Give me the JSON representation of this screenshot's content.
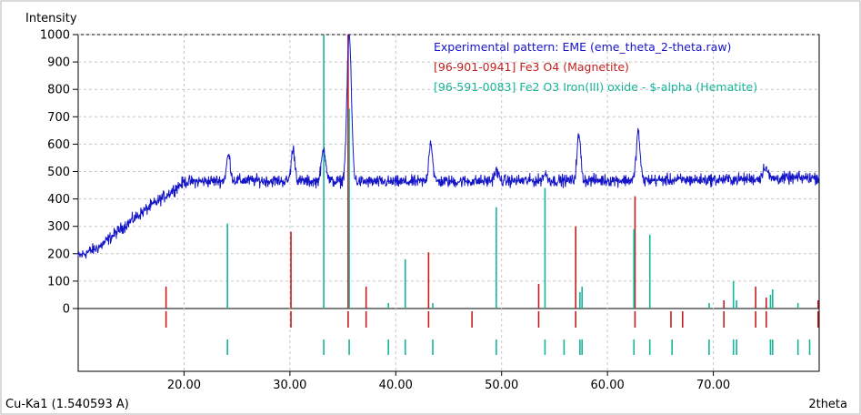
{
  "chart_data": {
    "type": "line",
    "ylabel": "Intensity",
    "xlabel": "2theta",
    "footer_left": "Cu-Ka1 (1.540593 A)",
    "xlim": [
      10.0,
      80.0
    ],
    "ylim": [
      0,
      1000
    ],
    "x_ticks": [
      "20.00",
      "30.00",
      "40.00",
      "50.00",
      "60.00",
      "70.00"
    ],
    "x_tick_values": [
      20,
      30,
      40,
      50,
      60,
      70
    ],
    "y_ticks": [
      "0",
      "100",
      "200",
      "300",
      "400",
      "500",
      "600",
      "700",
      "800",
      "900",
      "1000"
    ],
    "y_tick_values": [
      0,
      100,
      200,
      300,
      400,
      500,
      600,
      700,
      800,
      900,
      1000
    ],
    "grid": true,
    "legend_position": "top-right",
    "series": [
      {
        "name": "Experimental pattern: EME (eme_theta_2-theta.raw)",
        "kind": "pattern",
        "color": "#1515c8",
        "baseline": [
          [
            10.0,
            190
          ],
          [
            12.0,
            225
          ],
          [
            14.0,
            290
          ],
          [
            16.0,
            350
          ],
          [
            18.0,
            405
          ],
          [
            20.0,
            462
          ],
          [
            25.0,
            468
          ],
          [
            30.0,
            465
          ],
          [
            40.0,
            462
          ],
          [
            50.0,
            466
          ],
          [
            60.0,
            468
          ],
          [
            70.0,
            470
          ],
          [
            80.0,
            478
          ]
        ],
        "peaks": [
          {
            "x": 24.2,
            "height": 560,
            "width": 0.25
          },
          {
            "x": 30.3,
            "height": 580,
            "width": 0.25
          },
          {
            "x": 33.2,
            "height": 580,
            "width": 0.3
          },
          {
            "x": 35.6,
            "height": 1000,
            "width": 0.3
          },
          {
            "x": 43.3,
            "height": 610,
            "width": 0.25
          },
          {
            "x": 49.5,
            "height": 500,
            "width": 0.3
          },
          {
            "x": 54.1,
            "height": 490,
            "width": 0.3
          },
          {
            "x": 57.3,
            "height": 630,
            "width": 0.25
          },
          {
            "x": 62.9,
            "height": 645,
            "width": 0.25
          },
          {
            "x": 74.9,
            "height": 520,
            "width": 0.3
          }
        ]
      },
      {
        "name": "[96-901-0941] Fe3 O4 (Magnetite)",
        "kind": "sticks",
        "color": "#c41e1e",
        "x": [
          18.3,
          30.1,
          35.5,
          37.2,
          43.1,
          47.2,
          53.5,
          57.0,
          62.6,
          66.0,
          67.1,
          71.0,
          74.0,
          75.0,
          79.9
        ],
        "y": [
          80,
          280,
          1000,
          80,
          205,
          0,
          90,
          300,
          410,
          0,
          0,
          30,
          80,
          40,
          30
        ]
      },
      {
        "name": "[96-591-0083] Fe2 O3 Iron(III) oxide - $-alpha (Hematite)",
        "kind": "sticks",
        "color": "#17b49a",
        "x": [
          24.1,
          33.2,
          35.6,
          39.3,
          40.9,
          43.5,
          49.5,
          54.1,
          55.9,
          57.4,
          57.6,
          62.5,
          64.0,
          66.1,
          69.6,
          71.9,
          72.2,
          75.4,
          75.6,
          78.0,
          79.1
        ],
        "y": [
          310,
          1000,
          730,
          20,
          180,
          20,
          370,
          440,
          0,
          60,
          80,
          290,
          270,
          0,
          20,
          100,
          30,
          50,
          70,
          20,
          0
        ]
      }
    ]
  }
}
